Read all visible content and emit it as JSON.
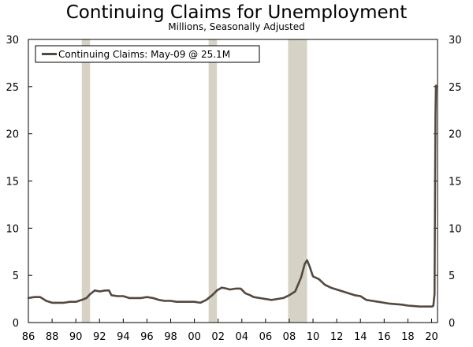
{
  "chart_data": {
    "type": "line",
    "title": "Continuing Claims for Unemployment",
    "subtitle": "Millions, Seasonally Adjusted",
    "xlabel": "",
    "ylabel": "",
    "xlim": [
      1986,
      2020.5
    ],
    "ylim": [
      0,
      30
    ],
    "x_ticks": [
      1986,
      1988,
      1990,
      1992,
      1994,
      1996,
      1998,
      2000,
      2002,
      2004,
      2006,
      2008,
      2010,
      2012,
      2014,
      2016,
      2018,
      2020
    ],
    "x_tick_labels": [
      "86",
      "88",
      "90",
      "92",
      "94",
      "96",
      "98",
      "00",
      "02",
      "04",
      "06",
      "08",
      "10",
      "12",
      "14",
      "16",
      "18",
      "20"
    ],
    "y_ticks": [
      0,
      5,
      10,
      15,
      20,
      25,
      30
    ],
    "y_tick_labels": [
      "0",
      "5",
      "10",
      "15",
      "20",
      "25",
      "30"
    ],
    "grid": false,
    "secondary_y_axis": true,
    "legend_position": "top-left",
    "recessions": [
      [
        1990.5,
        1991.2
      ],
      [
        2001.2,
        2001.9
      ],
      [
        2007.9,
        2009.5
      ]
    ],
    "series": [
      {
        "name": "Continuing Claims: May-09 @ 25.1M",
        "color": "#54483f",
        "x": [
          1986.0,
          1986.5,
          1987.0,
          1987.5,
          1988.0,
          1988.5,
          1989.0,
          1989.5,
          1990.0,
          1990.5,
          1990.9,
          1991.2,
          1991.6,
          1992.0,
          1992.5,
          1992.8,
          1993.0,
          1993.5,
          1994.0,
          1994.5,
          1995.0,
          1995.5,
          1996.0,
          1996.5,
          1997.0,
          1997.5,
          1998.0,
          1998.5,
          1999.0,
          1999.5,
          2000.0,
          2000.5,
          2001.0,
          2001.5,
          2001.9,
          2002.3,
          2002.7,
          2003.0,
          2003.5,
          2003.9,
          2004.3,
          2004.7,
          2005.0,
          2005.5,
          2006.0,
          2006.5,
          2007.0,
          2007.5,
          2008.0,
          2008.5,
          2009.0,
          2009.3,
          2009.5,
          2009.7,
          2010.0,
          2010.5,
          2011.0,
          2011.5,
          2012.0,
          2012.5,
          2013.0,
          2013.5,
          2014.0,
          2014.5,
          2015.0,
          2015.5,
          2016.0,
          2016.5,
          2017.0,
          2017.5,
          2018.0,
          2018.5,
          2019.0,
          2019.5,
          2019.9,
          2020.05,
          2020.15,
          2020.25,
          2020.33,
          2020.37
        ],
        "values": [
          2.6,
          2.7,
          2.7,
          2.3,
          2.1,
          2.1,
          2.1,
          2.2,
          2.2,
          2.4,
          2.6,
          3.0,
          3.4,
          3.3,
          3.4,
          3.4,
          2.9,
          2.8,
          2.8,
          2.6,
          2.6,
          2.6,
          2.7,
          2.6,
          2.4,
          2.3,
          2.3,
          2.2,
          2.2,
          2.2,
          2.2,
          2.1,
          2.4,
          2.9,
          3.4,
          3.7,
          3.6,
          3.5,
          3.6,
          3.6,
          3.1,
          2.9,
          2.7,
          2.6,
          2.5,
          2.4,
          2.5,
          2.6,
          2.9,
          3.3,
          4.8,
          6.2,
          6.6,
          6.0,
          4.9,
          4.6,
          4.0,
          3.7,
          3.5,
          3.3,
          3.1,
          2.9,
          2.8,
          2.4,
          2.3,
          2.2,
          2.1,
          2.0,
          1.95,
          1.9,
          1.8,
          1.75,
          1.7,
          1.7,
          1.7,
          1.7,
          1.8,
          3.0,
          22.0,
          25.1
        ]
      }
    ]
  },
  "colors": {
    "line": "#54483f",
    "recession_band": "#d6d3c6",
    "axis": "#000000"
  }
}
